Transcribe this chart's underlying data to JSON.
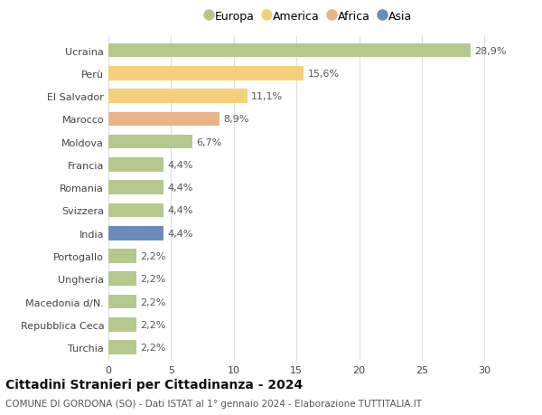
{
  "categories": [
    "Turchia",
    "Repubblica Ceca",
    "Macedonia d/N.",
    "Ungheria",
    "Portogallo",
    "India",
    "Svizzera",
    "Romania",
    "Francia",
    "Moldova",
    "Marocco",
    "El Salvador",
    "Perù",
    "Ucraina"
  ],
  "values": [
    2.2,
    2.2,
    2.2,
    2.2,
    2.2,
    4.4,
    4.4,
    4.4,
    4.4,
    6.7,
    8.9,
    11.1,
    15.6,
    28.9
  ],
  "labels": [
    "2,2%",
    "2,2%",
    "2,2%",
    "2,2%",
    "2,2%",
    "4,4%",
    "4,4%",
    "4,4%",
    "4,4%",
    "6,7%",
    "8,9%",
    "11,1%",
    "15,6%",
    "28,9%"
  ],
  "colors": [
    "#b5c98e",
    "#b5c98e",
    "#b5c98e",
    "#b5c98e",
    "#b5c98e",
    "#6b8cba",
    "#b5c98e",
    "#b5c98e",
    "#b5c98e",
    "#b5c98e",
    "#e8b48a",
    "#f5d07a",
    "#f5d07a",
    "#b5c98e"
  ],
  "legend": [
    {
      "label": "Europa",
      "color": "#b5c98e"
    },
    {
      "label": "America",
      "color": "#f5d07a"
    },
    {
      "label": "Africa",
      "color": "#e8b48a"
    },
    {
      "label": "Asia",
      "color": "#6b8cba"
    }
  ],
  "title": "Cittadini Stranieri per Cittadinanza - 2024",
  "subtitle": "COMUNE DI GORDONA (SO) - Dati ISTAT al 1° gennaio 2024 - Elaborazione TUTTITALIA.IT",
  "xlim": [
    0,
    32
  ],
  "xticks": [
    0,
    5,
    10,
    15,
    20,
    25,
    30
  ],
  "background_color": "#ffffff",
  "grid_color": "#dddddd",
  "bar_height": 0.62,
  "label_fontsize": 8,
  "tick_fontsize": 8,
  "title_fontsize": 10,
  "subtitle_fontsize": 7.5
}
